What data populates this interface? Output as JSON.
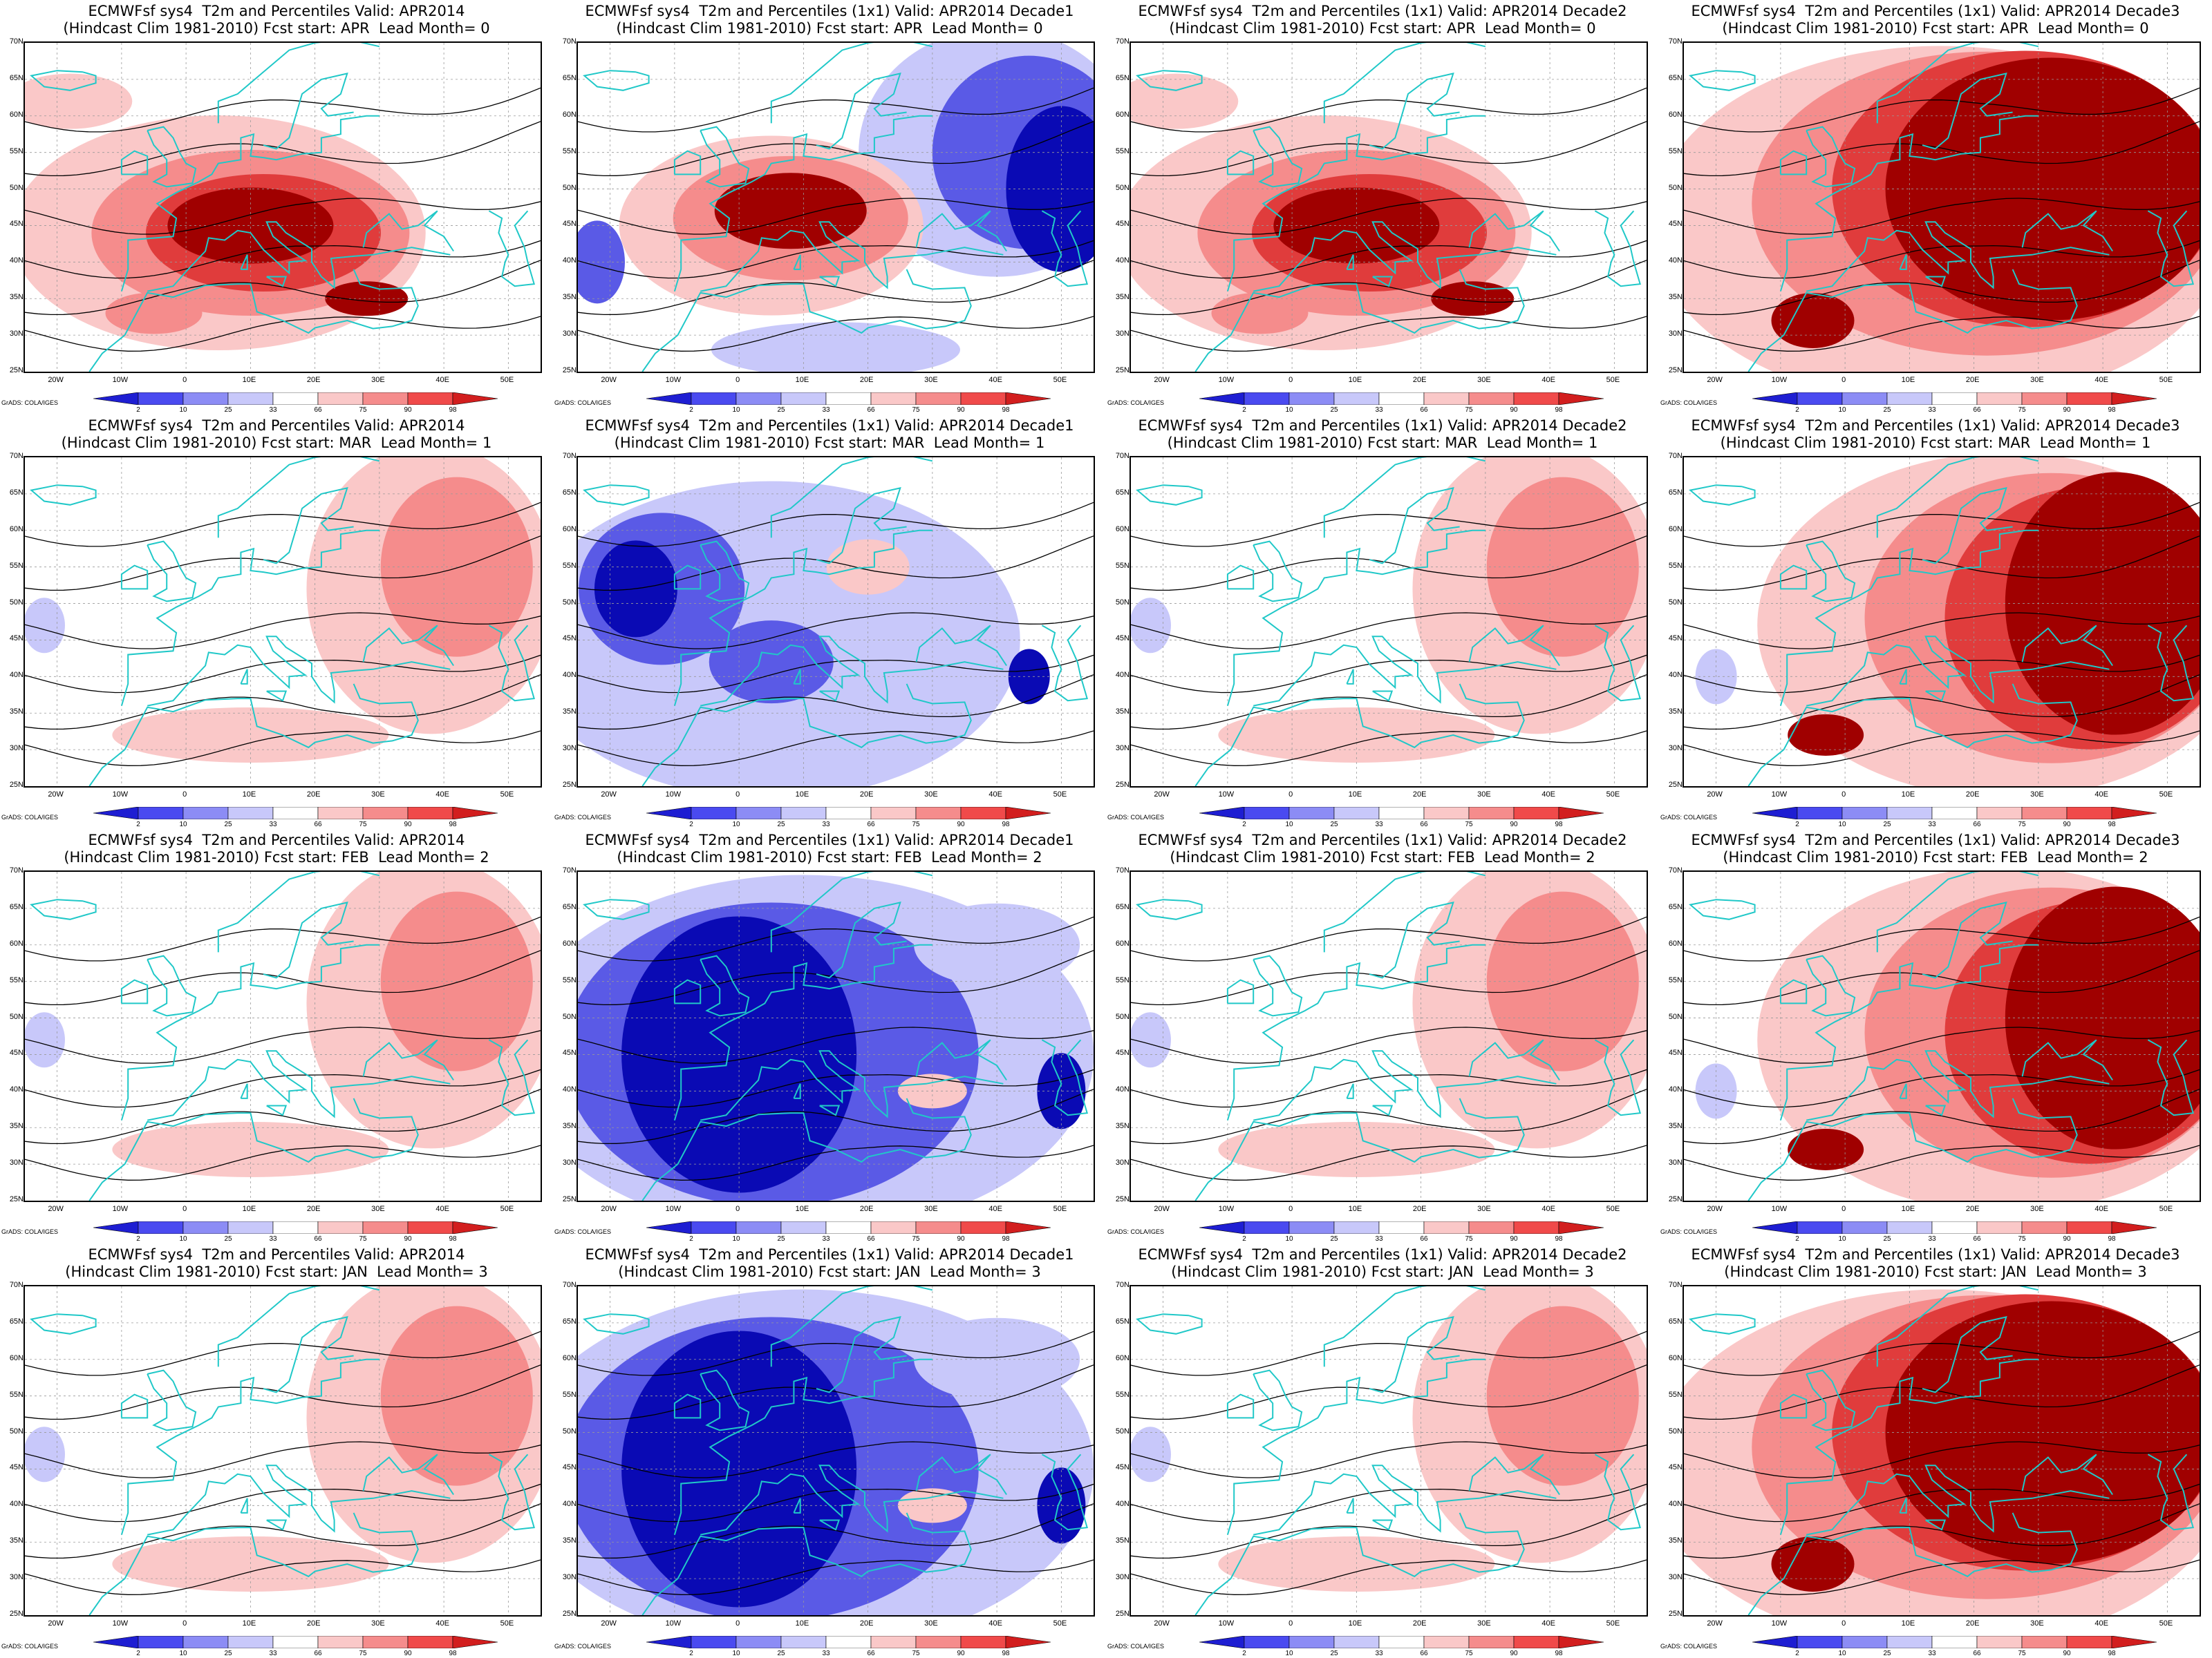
{
  "panels": [
    {
      "title1": "ECMWFsf sys4  T2m and Percentiles Valid: APR2014",
      "title2": "(Hindcast Clim 1981-2010) Fcst start: APR  Lead Month= 0",
      "anomaly": "warm-center"
    },
    {
      "title1": "ECMWFsf sys4  T2m and Percentiles (1x1) Valid: APR2014 Decade1",
      "title2": "(Hindcast Clim 1981-2010) Fcst start: APR  Lead Month= 0",
      "anomaly": "warm-center-cold-east"
    },
    {
      "title1": "ECMWFsf sys4  T2m and Percentiles (1x1) Valid: APR2014 Decade2",
      "title2": "(Hindcast Clim 1981-2010) Fcst start: APR  Lead Month= 0",
      "anomaly": "warm-center"
    },
    {
      "title1": "ECMWFsf sys4  T2m and Percentiles (1x1) Valid: APR2014 Decade3",
      "title2": "(Hindcast Clim 1981-2010) Fcst start: APR  Lead Month= 0",
      "anomaly": "warm-wide"
    },
    {
      "title1": "ECMWFsf sys4  T2m and Percentiles Valid: APR2014",
      "title2": "(Hindcast Clim 1981-2010) Fcst start: MAR  Lead Month= 1",
      "anomaly": "warm-east-light"
    },
    {
      "title1": "ECMWFsf sys4  T2m and Percentiles (1x1) Valid: APR2014 Decade1",
      "title2": "(Hindcast Clim 1981-2010) Fcst start: MAR  Lead Month= 1",
      "anomaly": "cold-west"
    },
    {
      "title1": "ECMWFsf sys4  T2m and Percentiles (1x1) Valid: APR2014 Decade2",
      "title2": "(Hindcast Clim 1981-2010) Fcst start: MAR  Lead Month= 1",
      "anomaly": "warm-east-light"
    },
    {
      "title1": "ECMWFsf sys4  T2m and Percentiles (1x1) Valid: APR2014 Decade3",
      "title2": "(Hindcast Clim 1981-2010) Fcst start: MAR  Lead Month= 1",
      "anomaly": "warm-east-strong"
    },
    {
      "title1": "ECMWFsf sys4  T2m and Percentiles Valid: APR2014",
      "title2": "(Hindcast Clim 1981-2010) Fcst start: FEB  Lead Month= 2",
      "anomaly": "warm-east-light"
    },
    {
      "title1": "ECMWFsf sys4  T2m and Percentiles (1x1) Valid: APR2014 Decade1",
      "title2": "(Hindcast Clim 1981-2010) Fcst start: FEB  Lead Month= 2",
      "anomaly": "cold-wide"
    },
    {
      "title1": "ECMWFsf sys4  T2m and Percentiles (1x1) Valid: APR2014 Decade2",
      "title2": "(Hindcast Clim 1981-2010) Fcst start: FEB  Lead Month= 2",
      "anomaly": "warm-east-light"
    },
    {
      "title1": "ECMWFsf sys4  T2m and Percentiles (1x1) Valid: APR2014 Decade3",
      "title2": "(Hindcast Clim 1981-2010) Fcst start: FEB  Lead Month= 2",
      "anomaly": "warm-east-strong"
    },
    {
      "title1": "ECMWFsf sys4  T2m and Percentiles Valid: APR2014",
      "title2": "(Hindcast Clim 1981-2010) Fcst start: JAN  Lead Month= 3",
      "anomaly": "warm-east-light"
    },
    {
      "title1": "ECMWFsf sys4  T2m and Percentiles (1x1) Valid: APR2014 Decade1",
      "title2": "(Hindcast Clim 1981-2010) Fcst start: JAN  Lead Month= 3",
      "anomaly": "cold-wide"
    },
    {
      "title1": "ECMWFsf sys4  T2m and Percentiles (1x1) Valid: APR2014 Decade2",
      "title2": "(Hindcast Clim 1981-2010) Fcst start: JAN  Lead Month= 3",
      "anomaly": "warm-east-light"
    },
    {
      "title1": "ECMWFsf sys4  T2m and Percentiles (1x1) Valid: APR2014 Decade3",
      "title2": "(Hindcast Clim 1981-2010) Fcst start: JAN  Lead Month= 3",
      "anomaly": "warm-wide"
    }
  ],
  "lat_labels": [
    "70N",
    "65N",
    "60N",
    "55N",
    "50N",
    "45N",
    "40N",
    "35N",
    "30N",
    "25N"
  ],
  "lon_labels": [
    "20W",
    "10W",
    "0",
    "10E",
    "20E",
    "30E",
    "40E",
    "50E"
  ],
  "colorbar_labels": [
    "2",
    "10",
    "25",
    "33",
    "66",
    "75",
    "90",
    "98"
  ],
  "colorbar_colors": [
    "#1e1ed2",
    "#4a4af0",
    "#8c8cf5",
    "#c8c8fa",
    "#ffffff",
    "#fac8c8",
    "#f58c8c",
    "#f04a4a",
    "#d21e1e"
  ],
  "credit": "GrADS: COLA/IGES",
  "colors": {
    "coast": "#20c8c8",
    "contour": "#000000",
    "cold_dark": "#0a0ab4",
    "cold_mid": "#5a5ae6",
    "cold_light": "#c8c8fa",
    "warm_light": "#fac8c8",
    "warm_mid": "#f58c8c",
    "warm_strong": "#e03c3c",
    "warm_dark": "#a00000"
  }
}
